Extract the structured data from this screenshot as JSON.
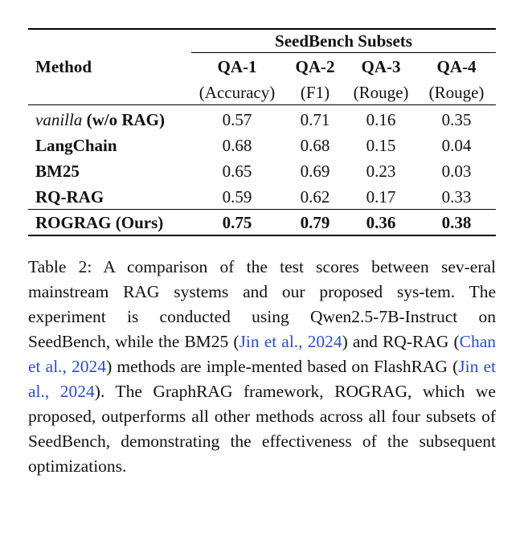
{
  "table": {
    "group_header": "SeedBench Subsets",
    "method_header": "Method",
    "columns": [
      {
        "name": "QA-1",
        "metric": "(Accuracy)"
      },
      {
        "name": "QA-2",
        "metric": "(F1)"
      },
      {
        "name": "QA-3",
        "metric": "(Rouge)"
      },
      {
        "name": "QA-4",
        "metric": "(Rouge)"
      }
    ],
    "rows": [
      {
        "method_italic": "vanilla",
        "method_bold": "(w/o RAG)",
        "values": [
          "0.57",
          "0.71",
          "0.16",
          "0.35"
        ]
      },
      {
        "method_bold": "LangChain",
        "values": [
          "0.68",
          "0.68",
          "0.15",
          "0.04"
        ]
      },
      {
        "method_bold": "BM25",
        "values": [
          "0.65",
          "0.69",
          "0.23",
          "0.03"
        ]
      },
      {
        "method_bold": "RQ-RAG",
        "values": [
          "0.59",
          "0.62",
          "0.17",
          "0.33"
        ]
      },
      {
        "method_bold": "ROGRAG (Ours)",
        "values": [
          "0.75",
          "0.79",
          "0.36",
          "0.38"
        ]
      }
    ]
  },
  "caption": {
    "p1": "Table 2: A comparison of the test scores between sev-eral mainstream RAG systems and our proposed sys-tem. The experiment is conducted using Qwen2.5-7B-Instruct on SeedBench, while the BM25 (",
    "cite1": "Jin et al., 2024",
    "p2": ") and RQ-RAG (",
    "cite2": "Chan et al., 2024",
    "p3": ") methods are imple-mented based on FlashRAG (",
    "cite3": "Jin et al., 2024",
    "p4": "). The GraphRAG framework, ROGRAG, which we proposed, outperforms all other methods across all four subsets of SeedBench, demonstrating the effectiveness of the subsequent optimizations."
  }
}
